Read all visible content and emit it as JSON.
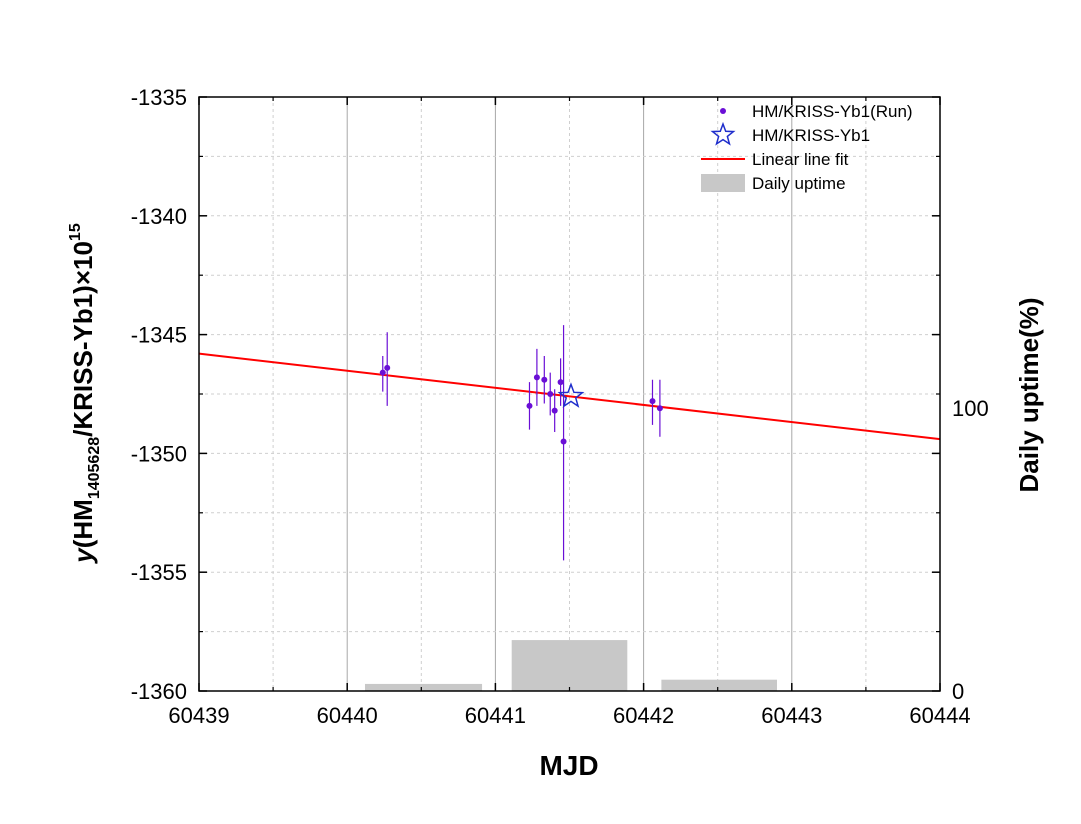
{
  "chart_data": {
    "type": "scatter",
    "xlabel": "MJD",
    "ylabel_prefix": "y",
    "ylabel_main": "(HM",
    "ylabel_sub": "1405628",
    "ylabel_rest": "/KRISS-Yb1)×10",
    "ylabel_sup": "15",
    "y2label": "Daily uptime(%)",
    "xlim": [
      60439,
      60444
    ],
    "ylim": [
      -1360,
      -1335
    ],
    "y2lim": [
      0,
      210
    ],
    "x_ticks": [
      60439,
      60440,
      60441,
      60442,
      60443,
      60444
    ],
    "x_tick_labels": [
      "60439",
      "60440",
      "60441",
      "60442",
      "60443",
      "60444"
    ],
    "y_ticks": [
      -1335,
      -1340,
      -1345,
      -1350,
      -1355,
      -1360
    ],
    "y_tick_labels": [
      "-1335",
      "-1340",
      "-1345",
      "-1350",
      "-1355",
      "-1360"
    ],
    "y2_ticks": [
      0,
      100
    ],
    "y2_tick_labels": [
      "0",
      "100"
    ],
    "grid": true,
    "legend_position": "top-right",
    "legend": [
      {
        "label": "HM/KRISS-Yb1(Run)",
        "marker": "dot",
        "color": "#6a0fd6"
      },
      {
        "label": "HM/KRISS-Yb1",
        "marker": "star",
        "color": "#1f2ecc"
      },
      {
        "label": "Linear line fit",
        "marker": "line",
        "color": "#ff0000"
      },
      {
        "label": "Daily uptime",
        "marker": "rect",
        "color": "#c8c8c8"
      }
    ],
    "series": [
      {
        "name": "HM/KRISS-Yb1(Run)",
        "color": "#6a0fd6",
        "points": [
          {
            "x": 60440.24,
            "y": -1346.6,
            "ylo": -1347.4,
            "yhi": -1345.9
          },
          {
            "x": 60440.27,
            "y": -1346.4,
            "ylo": -1348.0,
            "yhi": -1344.9
          },
          {
            "x": 60441.23,
            "y": -1348.0,
            "ylo": -1349.0,
            "yhi": -1347.0
          },
          {
            "x": 60441.28,
            "y": -1346.8,
            "ylo": -1348.0,
            "yhi": -1345.6
          },
          {
            "x": 60441.33,
            "y": -1346.9,
            "ylo": -1347.9,
            "yhi": -1345.9
          },
          {
            "x": 60441.37,
            "y": -1347.5,
            "ylo": -1348.4,
            "yhi": -1346.6
          },
          {
            "x": 60441.4,
            "y": -1348.2,
            "ylo": -1349.1,
            "yhi": -1347.3
          },
          {
            "x": 60441.44,
            "y": -1347.0,
            "ylo": -1348.0,
            "yhi": -1346.0
          },
          {
            "x": 60441.46,
            "y": -1349.5,
            "ylo": -1354.5,
            "yhi": -1344.6
          },
          {
            "x": 60442.06,
            "y": -1347.8,
            "ylo": -1348.8,
            "yhi": -1346.9
          },
          {
            "x": 60442.11,
            "y": -1348.1,
            "ylo": -1349.3,
            "yhi": -1346.9
          }
        ]
      },
      {
        "name": "HM/KRISS-Yb1",
        "color": "#1f2ecc",
        "points": [
          {
            "x": 60441.51,
            "y": -1347.6
          }
        ]
      }
    ],
    "fit_line": {
      "name": "Linear line fit",
      "color": "#ff0000",
      "x": [
        60439,
        60444
      ],
      "y": [
        -1345.8,
        -1349.4
      ]
    },
    "uptime_bars": {
      "name": "Daily uptime",
      "color": "#c8c8c8",
      "bars": [
        {
          "x0": 60440.12,
          "x1": 60440.91,
          "value": 2.5
        },
        {
          "x0": 60441.11,
          "x1": 60441.89,
          "value": 18
        },
        {
          "x0": 60442.12,
          "x1": 60442.9,
          "value": 4
        }
      ]
    }
  }
}
